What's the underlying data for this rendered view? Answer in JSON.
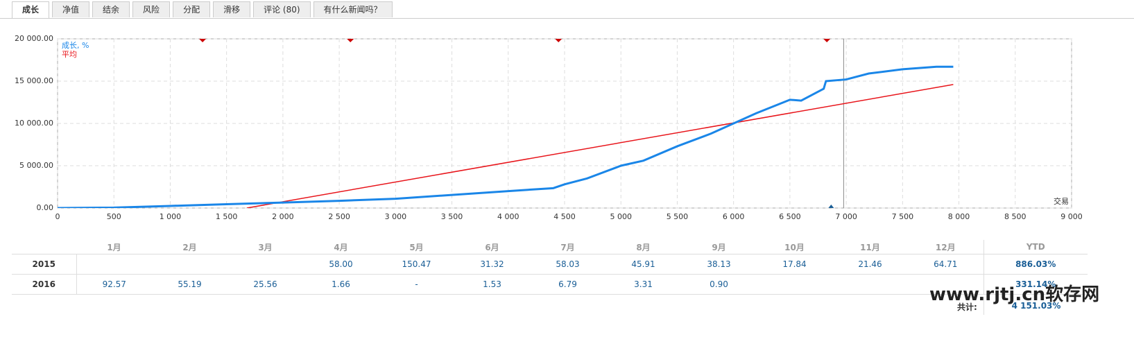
{
  "tabs": [
    "成长",
    "净值",
    "结余",
    "风险",
    "分配",
    "滑移",
    "评论 (80)",
    "有什么新闻吗？"
  ],
  "chart_data": {
    "type": "line",
    "legend": "top-left",
    "grid": true,
    "x_label": "交易",
    "xlim": [
      0,
      9000
    ],
    "xticks": [
      0,
      500,
      {
        "value": 1000,
        "label": "1 000"
      },
      {
        "value": 1500,
        "label": "1 500"
      },
      {
        "value": 2000,
        "label": "2 000"
      },
      {
        "value": 2500,
        "label": "2 500"
      },
      {
        "value": 3000,
        "label": "3 000"
      },
      {
        "value": 3500,
        "label": "3 500"
      },
      {
        "value": 4000,
        "label": "4 000"
      },
      {
        "value": 4500,
        "label": "4 500"
      },
      {
        "value": 5000,
        "label": "5 000"
      },
      {
        "value": 5500,
        "label": "5 500"
      },
      {
        "value": 6000,
        "label": "6 000"
      },
      {
        "value": 6500,
        "label": "6 500"
      },
      {
        "value": 7000,
        "label": "7 000"
      },
      {
        "value": 7500,
        "label": "7 500"
      },
      {
        "value": 8000,
        "label": "8 000"
      },
      {
        "value": 8500,
        "label": "8 500"
      },
      {
        "value": 9000,
        "label": "9 000"
      }
    ],
    "ylim": [
      0,
      20000
    ],
    "yticks": [
      {
        "value": 0,
        "label": "0.00"
      },
      {
        "value": 5000,
        "label": "5 000.00"
      },
      {
        "value": 10000,
        "label": "10 000.00"
      },
      {
        "value": 15000,
        "label": "15 000.00"
      },
      {
        "value": 20000,
        "label": "20 000.00"
      }
    ],
    "series": [
      {
        "name": "成长, %",
        "color": "#1a86e8",
        "x": [
          0,
          500,
          1000,
          1500,
          2000,
          2500,
          3000,
          3500,
          4000,
          4400,
          4500,
          4700,
          5000,
          5200,
          5500,
          5800,
          6000,
          6200,
          6500,
          6600,
          6800,
          6820,
          7000,
          7200,
          7500,
          7800,
          7950
        ],
        "values": [
          0,
          50,
          250,
          450,
          650,
          850,
          1100,
          1550,
          2000,
          2350,
          2800,
          3500,
          5000,
          5600,
          7300,
          8800,
          10000,
          11200,
          12800,
          12700,
          14100,
          15000,
          15200,
          15900,
          16400,
          16700,
          16700
        ]
      },
      {
        "name": "平均",
        "color": "#e8141a",
        "x": [
          1680,
          7950
        ],
        "values": [
          0,
          14600
        ]
      }
    ],
    "events": [
      1287,
      2599,
      4446,
      6828
    ],
    "marker": 6866,
    "cursor": 6977
  },
  "table": {
    "header": [
      "1月",
      "2月",
      "3月",
      "4月",
      "5月",
      "6月",
      "7月",
      "8月",
      "9月",
      "10月",
      "11月",
      "12月",
      "YTD"
    ],
    "rows": [
      [
        "2015",
        null,
        null,
        null,
        "58.00",
        "150.47",
        "31.32",
        "58.03",
        "45.91",
        "38.13",
        "17.84",
        "21.46",
        "64.71",
        "886.03%"
      ],
      [
        "2016",
        "92.57",
        "55.19",
        "25.56",
        "1.66",
        "-",
        "1.53",
        "6.79",
        "3.31",
        "0.90",
        null,
        null,
        null,
        "331.14%"
      ]
    ],
    "total_label": "共计:",
    "total": "4 151.03%"
  },
  "watermark": "www.rjtj.cn软存网"
}
